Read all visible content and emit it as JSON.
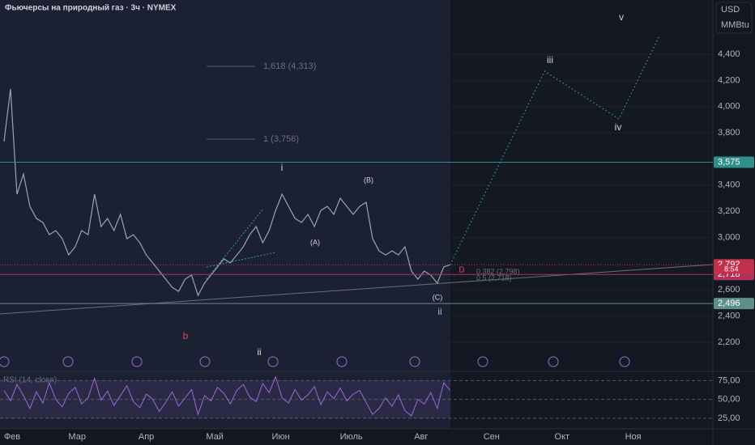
{
  "chart_data": {
    "type": "line",
    "title": "Фьючерсы на природный газ · 3ч · NYMEX",
    "currency": "USD",
    "unit": "MMBtu",
    "xlim": [
      0,
      109
    ],
    "xticks": [
      {
        "value": 1.25,
        "label": "Фев"
      },
      {
        "value": 11.3,
        "label": "Мар"
      },
      {
        "value": 22,
        "label": "Апр"
      },
      {
        "value": 32.6,
        "label": "Май"
      },
      {
        "value": 42.8,
        "label": "Июн"
      },
      {
        "value": 53.7,
        "label": "Июль"
      },
      {
        "value": 64.5,
        "label": "Авг"
      },
      {
        "value": 75.4,
        "label": "Сен"
      },
      {
        "value": 86.3,
        "label": "Окт"
      },
      {
        "value": 97.3,
        "label": "Ноя"
      }
    ],
    "ylim": [
      1984,
      4814
    ],
    "yticks": [
      {
        "value": 2200,
        "label": "2,200"
      },
      {
        "value": 2400,
        "label": "2,400"
      },
      {
        "value": 2600,
        "label": "2,600"
      },
      {
        "value": 3000,
        "label": "3,000"
      },
      {
        "value": 3200,
        "label": "3,200"
      },
      {
        "value": 3400,
        "label": "3,400"
      },
      {
        "value": 3800,
        "label": "3,800"
      },
      {
        "value": 4000,
        "label": "4,000"
      },
      {
        "value": 4200,
        "label": "4,200"
      },
      {
        "value": 4400,
        "label": "4,400"
      }
    ],
    "series": [
      {
        "name": "NG",
        "color": "#9aa3b5",
        "values": [
          3733,
          4135,
          3331,
          3485,
          3238,
          3146,
          3115,
          3022,
          3053,
          2991,
          2867,
          2929,
          3053,
          3022,
          3331,
          3084,
          3146,
          3053,
          3177,
          2991,
          3022,
          2960,
          2867,
          2806,
          2744,
          2682,
          2620,
          2589,
          2682,
          2713,
          2558,
          2651,
          2713,
          2775,
          2837,
          2806,
          2867,
          2929,
          3022,
          3084,
          2960,
          3053,
          3207,
          3331,
          3238,
          3146,
          3115,
          3177,
          3084,
          3207,
          3238,
          3177,
          3300,
          3238,
          3177,
          3238,
          3269,
          2991,
          2898,
          2867,
          2898,
          2867,
          2929,
          2744,
          2682,
          2744,
          2713,
          2651,
          2775,
          2792
        ]
      }
    ],
    "projection": {
      "color": "#26a69a",
      "x": [
        69,
        83.6,
        95.1,
        101.3
      ],
      "values": [
        2792,
        4270,
        3906,
        4536
      ]
    },
    "levels": [
      {
        "value": 3575,
        "label": "3,575",
        "color": "#2f8f8a"
      },
      {
        "value": 2792,
        "label": "2,792",
        "color": "#c2304a"
      },
      {
        "value": 2718,
        "label": "2,718",
        "color": "#b3305a"
      },
      {
        "value": 2496,
        "label": "2,496",
        "color": "#5e8f8b"
      }
    ],
    "countdown": "8:54",
    "annotations": {
      "fib1": "1,618 (4,313)",
      "fib2": "1 (3,756)",
      "fib3": "0,382 (2,798)",
      "fib4": "0,5 (2,718)",
      "w_i": "i",
      "w_A": "(A)",
      "w_B": "(B)",
      "w_C": "(C)",
      "w_ii": "ii",
      "w_iii": "iii",
      "w_iv": "iv",
      "w_v": "v",
      "w_b": "b",
      "w_ii2": "ii",
      "d": "D"
    },
    "rsi": {
      "label": "RSI (14, close)",
      "color": "#9c6ad6",
      "ylim": [
        13,
        84
      ],
      "yticks": [
        {
          "value": 75,
          "label": "75,00"
        },
        {
          "value": 50,
          "label": "50,00"
        },
        {
          "value": 25,
          "label": "25,00"
        }
      ],
      "values": [
        62,
        48,
        70,
        55,
        38,
        60,
        45,
        72,
        50,
        40,
        58,
        66,
        44,
        52,
        78,
        49,
        61,
        42,
        55,
        68,
        47,
        39,
        57,
        50,
        34,
        46,
        60,
        41,
        52,
        63,
        30,
        55,
        48,
        66,
        58,
        44,
        62,
        70,
        53,
        47,
        71,
        59,
        80,
        52,
        45,
        63,
        49,
        56,
        67,
        43,
        60,
        51,
        65,
        48,
        57,
        62,
        46,
        30,
        38,
        52,
        41,
        56,
        35,
        28,
        50,
        44,
        59,
        38,
        72,
        62
      ]
    }
  }
}
